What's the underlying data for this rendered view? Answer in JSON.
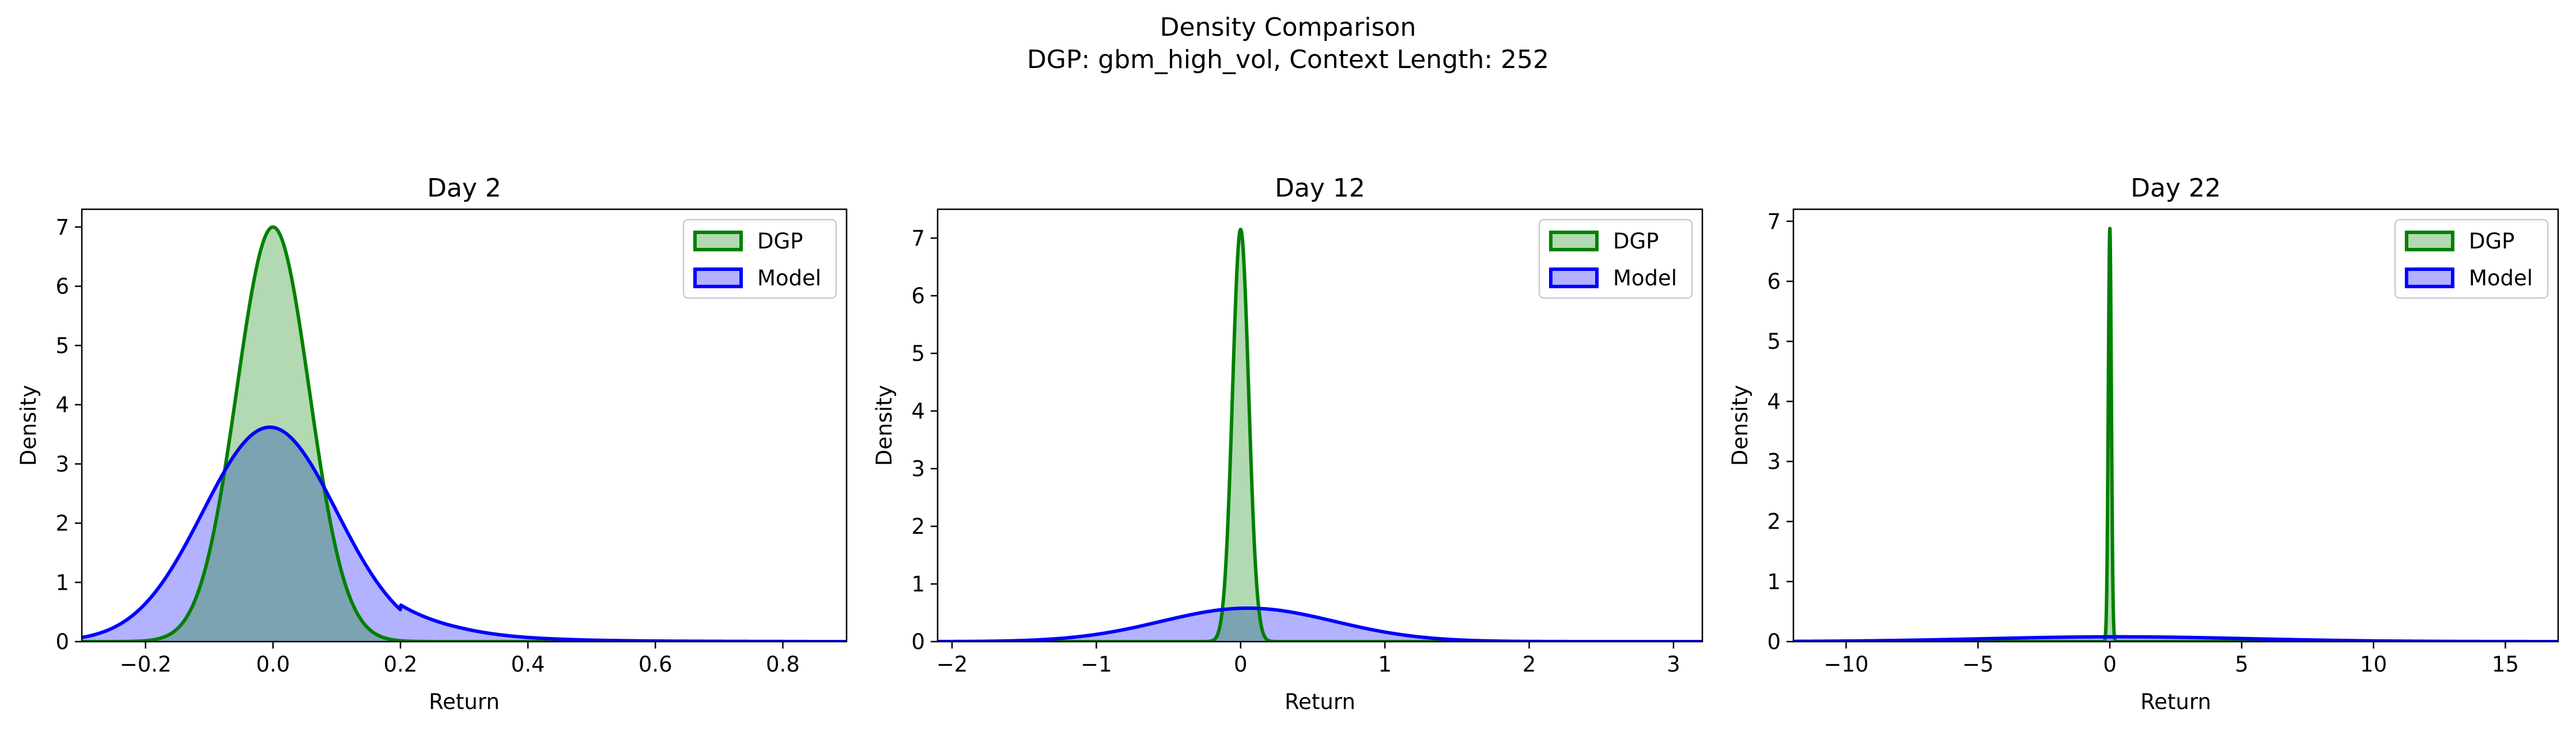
{
  "figure": {
    "title": "Density Comparison",
    "subtitle": "DGP: gbm_high_vol, Context Length: 252"
  },
  "legend_labels": [
    "DGP",
    "Model"
  ],
  "colors": {
    "DGP": "#008000",
    "Model": "#0000ff"
  },
  "chart_data": [
    {
      "type": "area",
      "title": "Day 2",
      "xlabel": "Return",
      "ylabel": "Density",
      "xlim": [
        -0.3,
        0.9
      ],
      "ylim": [
        0,
        7.3
      ],
      "xticks": [
        -0.2,
        0.0,
        0.2,
        0.4,
        0.6,
        0.8
      ],
      "yticks": [
        0,
        1,
        2,
        3,
        4,
        5,
        6,
        7
      ],
      "legend_position": "top-right",
      "grid": false,
      "series": [
        {
          "name": "DGP",
          "mean": 0.0,
          "peak": 7.0,
          "std": 0.057
        },
        {
          "name": "Model",
          "mean": -0.005,
          "peak": 3.62,
          "std": 0.105,
          "right_tail": [
            [
              0.2,
              0.62
            ],
            [
              0.3,
              0.22
            ],
            [
              0.4,
              0.07
            ],
            [
              0.5,
              0.025
            ],
            [
              0.6,
              0.01
            ],
            [
              0.8,
              0.002
            ],
            [
              0.9,
              0.0
            ]
          ]
        }
      ]
    },
    {
      "type": "area",
      "title": "Day 12",
      "xlabel": "Return",
      "ylabel": "Density",
      "xlim": [
        -2.1,
        3.2
      ],
      "ylim": [
        0,
        7.5
      ],
      "xticks": [
        -2,
        -1,
        0,
        1,
        2,
        3
      ],
      "yticks": [
        0,
        1,
        2,
        3,
        4,
        5,
        6,
        7
      ],
      "legend_position": "top-right",
      "grid": false,
      "series": [
        {
          "name": "DGP",
          "mean": 0.0,
          "peak": 7.15,
          "std": 0.056
        },
        {
          "name": "Model",
          "mean": 0.05,
          "peak": 0.58,
          "std": 0.6
        }
      ]
    },
    {
      "type": "area",
      "title": "Day 22",
      "xlabel": "Return",
      "ylabel": "Density",
      "xlim": [
        -12,
        17
      ],
      "ylim": [
        0,
        7.2
      ],
      "xticks": [
        -10,
        -5,
        0,
        5,
        10,
        15
      ],
      "yticks": [
        0,
        1,
        2,
        3,
        4,
        5,
        6,
        7
      ],
      "legend_position": "top-right",
      "grid": false,
      "series": [
        {
          "name": "DGP",
          "mean": 0.0,
          "peak": 6.88,
          "std": 0.058
        },
        {
          "name": "Model",
          "mean": 0.3,
          "peak": 0.08,
          "std": 5.0
        }
      ]
    }
  ]
}
